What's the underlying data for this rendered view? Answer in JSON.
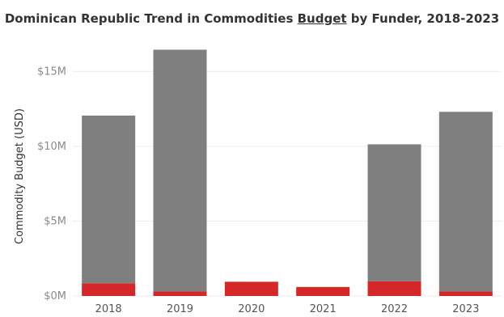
{
  "chart_data": {
    "type": "bar",
    "stacked": true,
    "title_parts": [
      "Dominican Republic Trend in Commodities ",
      "Budget",
      " by Funder, 2018-2023"
    ],
    "xlabel": "",
    "ylabel": "Commodity Budget (USD)",
    "categories": [
      "2018",
      "2019",
      "2020",
      "2021",
      "2022",
      "2023"
    ],
    "y_ticks": [
      {
        "value": 0,
        "label": "$0M"
      },
      {
        "value": 5,
        "label": "$5M"
      },
      {
        "value": 10,
        "label": "$10M"
      },
      {
        "value": 15,
        "label": "$15M"
      }
    ],
    "ylim": [
      0,
      17.5
    ],
    "units": "millions USD",
    "grid": true,
    "series": [
      {
        "color": "#d62728",
        "values": [
          0.85,
          0.3,
          0.95,
          0.6,
          0.98,
          0.3
        ]
      },
      {
        "color": "#7f7f7f",
        "values": [
          11.2,
          16.15,
          0,
          0,
          9.15,
          12.0
        ]
      }
    ]
  }
}
